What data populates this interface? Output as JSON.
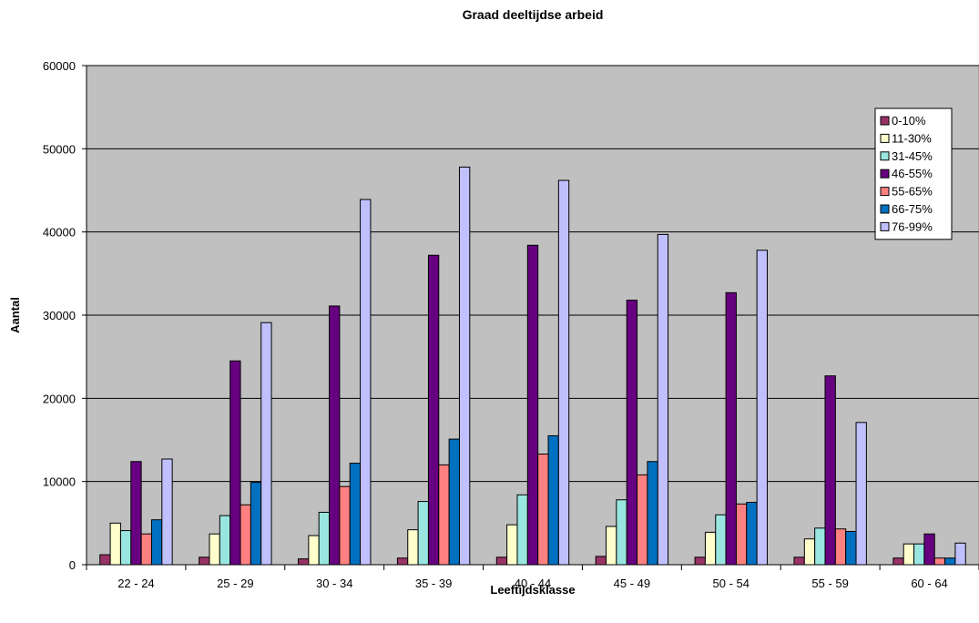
{
  "chart_data": {
    "type": "bar",
    "title": "Graad deeltijdse arbeid",
    "xlabel": "Leeftijdsklasse",
    "ylabel": "Aantal",
    "ylim": [
      0,
      60000
    ],
    "yticks": [
      0,
      10000,
      20000,
      30000,
      40000,
      50000,
      60000
    ],
    "grid": true,
    "legend_position": "top-right",
    "plot_background": "#c0c0c0",
    "categories": [
      "22 - 24",
      "25 - 29",
      "30 - 34",
      "35 - 39",
      "40 - 44",
      "45 - 49",
      "50 - 54",
      "55 - 59",
      "60 - 64"
    ],
    "series": [
      {
        "name": "0-10%",
        "color": "#993366",
        "values": [
          1200,
          900,
          700,
          800,
          900,
          1000,
          900,
          900,
          800
        ]
      },
      {
        "name": "11-30%",
        "color": "#ffffcc",
        "values": [
          5000,
          3700,
          3500,
          4200,
          4800,
          4600,
          3900,
          3100,
          2500
        ]
      },
      {
        "name": "31-45%",
        "color": "#99e6e0",
        "values": [
          4100,
          5900,
          6300,
          7600,
          8400,
          7800,
          6000,
          4400,
          2500
        ]
      },
      {
        "name": "46-55%",
        "color": "#660080",
        "values": [
          12400,
          24500,
          31100,
          37200,
          38400,
          31800,
          32700,
          22700,
          3700
        ]
      },
      {
        "name": "55-65%",
        "color": "#ff8080",
        "values": [
          3700,
          7200,
          9400,
          12000,
          13300,
          10800,
          7300,
          4300,
          800
        ]
      },
      {
        "name": "66-75%",
        "color": "#0070c0",
        "values": [
          5400,
          9900,
          12200,
          15100,
          15500,
          12400,
          7500,
          4000,
          800
        ]
      },
      {
        "name": "76-99%",
        "color": "#c0c0ff",
        "values": [
          12700,
          29100,
          43900,
          47800,
          46200,
          39700,
          37800,
          17100,
          2600
        ]
      }
    ]
  }
}
